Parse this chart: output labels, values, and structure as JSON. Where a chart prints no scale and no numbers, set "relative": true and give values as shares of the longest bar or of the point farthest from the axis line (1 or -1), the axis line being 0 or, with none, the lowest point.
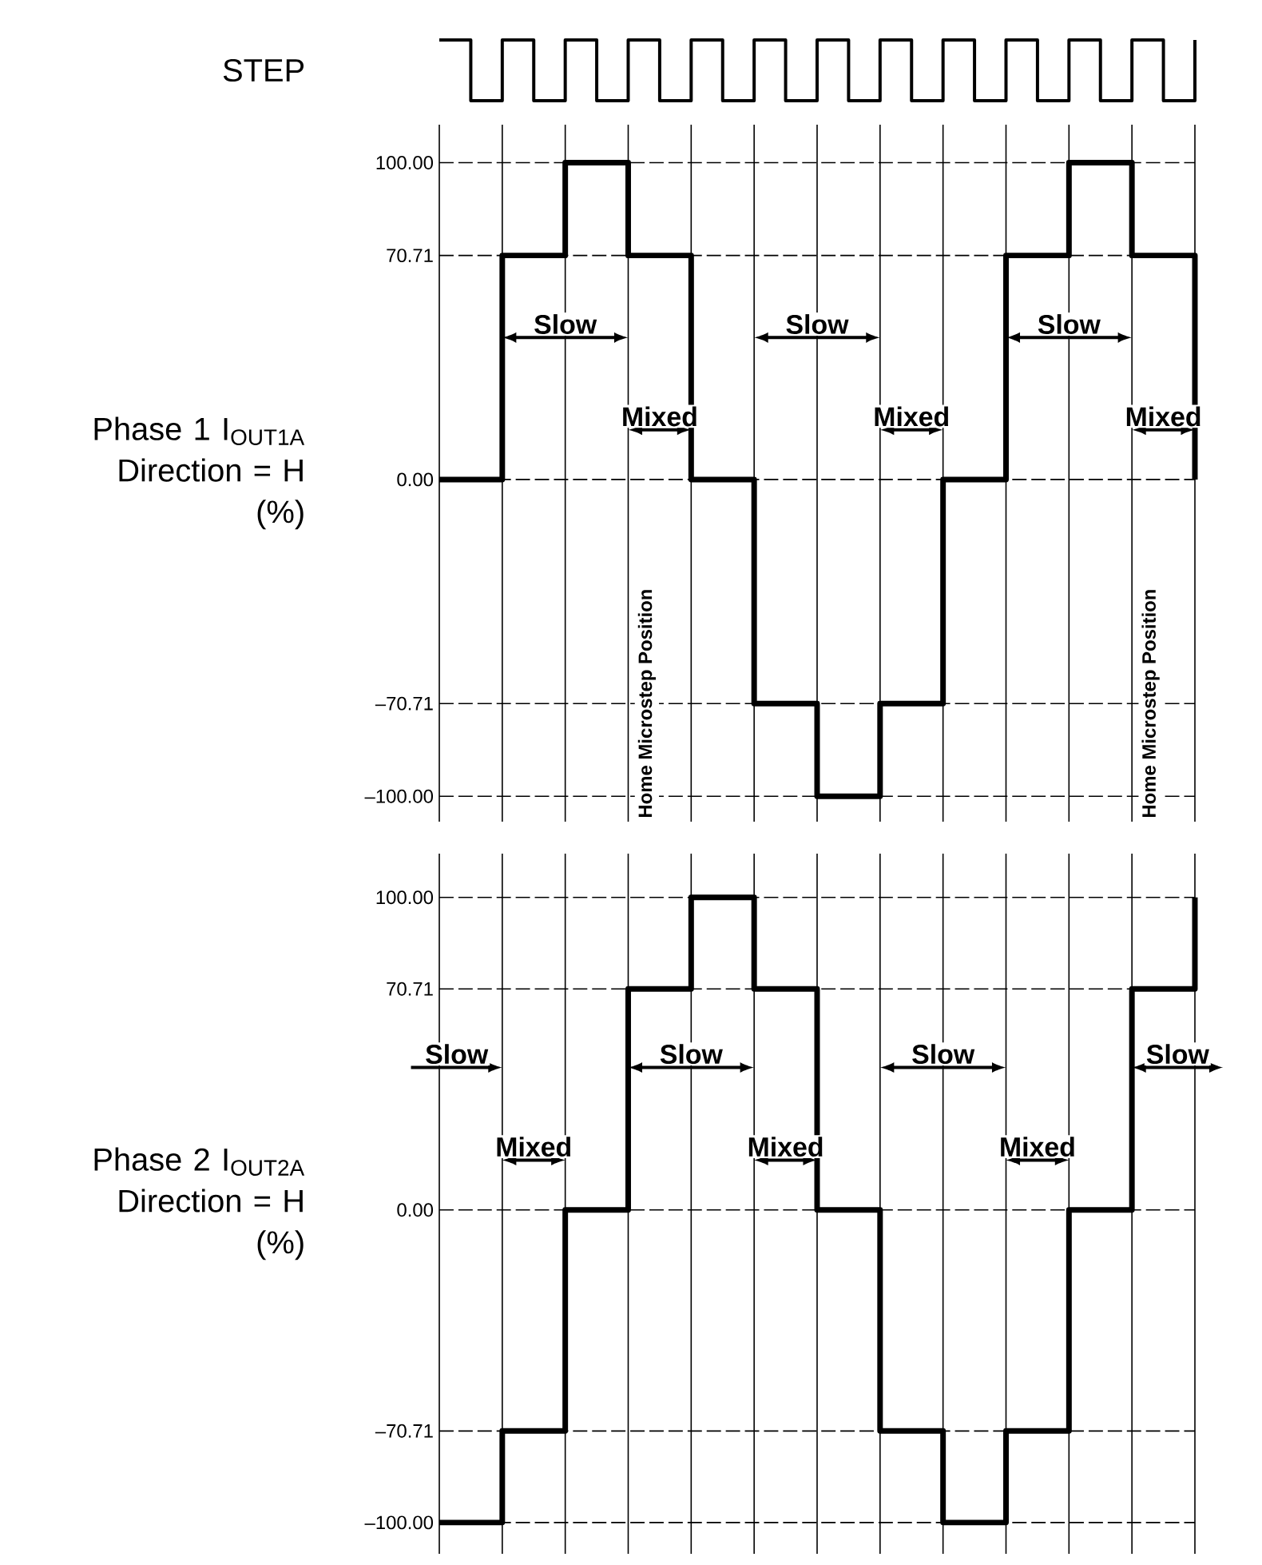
{
  "chart_data": [
    {
      "type": "step",
      "relative": true,
      "ylabel": "STEP",
      "color": "#000000",
      "categories": [
        null,
        null,
        null,
        null,
        null,
        null,
        null,
        null,
        null,
        null,
        null,
        null,
        null,
        null,
        null,
        null,
        null,
        null,
        null,
        null,
        null,
        null,
        null,
        null,
        null
      ],
      "values": [
        1,
        0,
        1,
        0,
        1,
        0,
        1,
        0,
        1,
        0,
        1,
        0,
        1,
        0,
        1,
        0,
        1,
        0,
        1,
        0,
        1,
        0,
        1,
        0,
        1
      ]
    },
    {
      "type": "step",
      "ylabel": "Phase 1 I$_{OUT1A}$ Direction = H (%)",
      "color": "#000000",
      "grid": true,
      "categories": [
        null,
        null,
        null,
        null,
        null,
        null,
        null,
        null,
        null,
        null,
        null,
        null,
        null
      ],
      "values": [
        0,
        70.71,
        100,
        70.71,
        0,
        -70.71,
        -100,
        -70.71,
        0,
        70.71,
        100,
        70.71,
        0
      ],
      "ylim": [
        -108,
        112
      ],
      "yticks": [
        {
          "value": -100,
          "label": "–100.00"
        },
        {
          "value": -70.71,
          "label": "–70.71"
        },
        {
          "value": 0,
          "label": "0.00"
        },
        {
          "value": 70.71,
          "label": "70.71"
        },
        {
          "value": 100,
          "label": "100.00"
        }
      ],
      "annotations": [
        "Slow",
        "Mixed",
        "Slow",
        "Mixed",
        "Slow",
        "Mixed",
        "Home Microstep Position",
        "Home Microstep Position"
      ]
    },
    {
      "type": "step",
      "ylabel": "Phase 2 I$_{OUT2A}$ Direction = H (%)",
      "color": "#000000",
      "grid": true,
      "categories": [
        null,
        null,
        null,
        null,
        null,
        null,
        null,
        null,
        null,
        null,
        null,
        null,
        null
      ],
      "values": [
        -100,
        -70.71,
        0,
        70.71,
        100,
        70.71,
        0,
        -70.71,
        -100,
        -70.71,
        0,
        70.71,
        100
      ],
      "ylim": [
        -110,
        114
      ],
      "yticks": [
        {
          "value": -100,
          "label": "–100.00"
        },
        {
          "value": -70.71,
          "label": "–70.71"
        },
        {
          "value": 0,
          "label": "0.00"
        },
        {
          "value": 70.71,
          "label": "70.71"
        },
        {
          "value": 100,
          "label": "100.00"
        }
      ],
      "annotations": [
        "Slow",
        "Mixed",
        "Slow",
        "Mixed",
        "Slow",
        "Mixed",
        "Slow"
      ]
    }
  ]
}
